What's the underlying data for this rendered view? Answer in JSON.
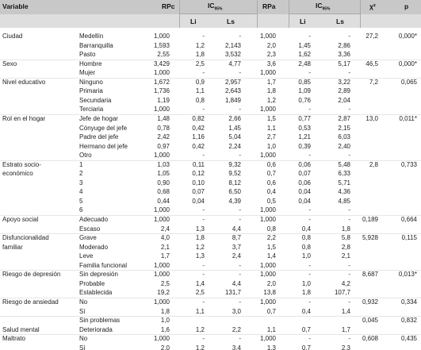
{
  "header": {
    "variable": "Variable",
    "rpc": "RPc",
    "ic_main": "IC",
    "ic_sub": "95%",
    "rpa": "RPa",
    "chi2": "χ²",
    "p": "p",
    "li": "Li",
    "ls": "Ls"
  },
  "rows": [
    {
      "var": "Ciudad",
      "cat": "Medellín",
      "rpc": "1,000",
      "li": "-",
      "ls": "-",
      "rpa": "1,000",
      "li2": "-",
      "ls2": "-",
      "chi": "27,2",
      "p": "0,000*"
    },
    {
      "var": "",
      "cat": "Barranquilla",
      "rpc": "1,593",
      "li": "1,2",
      "ls": "2,143",
      "rpa": "2,0",
      "li2": "1,45",
      "ls2": "2,86",
      "chi": "",
      "p": ""
    },
    {
      "var": "",
      "cat": "Pasto",
      "rpc": "2,55",
      "li": "1,8",
      "ls": "3,532",
      "rpa": "2,3",
      "li2": "1,62",
      "ls2": "3,36",
      "chi": "",
      "p": ""
    },
    {
      "var": "Sexo",
      "cat": "Hombre",
      "rpc": "3,429",
      "li": "2,5",
      "ls": "4,77",
      "rpa": "3,6",
      "li2": "2,48",
      "ls2": "5,17",
      "chi": "46,5",
      "p": "0,000*"
    },
    {
      "var": "",
      "cat": "Mujer",
      "rpc": "1,000",
      "li": "-",
      "ls": "-",
      "rpa": "1,000",
      "li2": "-",
      "ls2": "-",
      "chi": "",
      "p": ""
    },
    {
      "var": "Nivel educativo",
      "cat": "Ninguno",
      "rpc": "1,672",
      "li": "0,9",
      "ls": "2,957",
      "rpa": "1,7",
      "li2": "0,85",
      "ls2": "3,22",
      "chi": "7,2",
      "p": "0,065"
    },
    {
      "var": "",
      "cat": "Primaria",
      "rpc": "1,736",
      "li": "1,1",
      "ls": "2,643",
      "rpa": "1,8",
      "li2": "1,09",
      "ls2": "2,89",
      "chi": "",
      "p": ""
    },
    {
      "var": "",
      "cat": "Secundaria",
      "rpc": "1,19",
      "li": "0,8",
      "ls": "1,849",
      "rpa": "1,2",
      "li2": "0,76",
      "ls2": "2,04",
      "chi": "",
      "p": ""
    },
    {
      "var": "",
      "cat": "Terciaria",
      "rpc": "1,000",
      "li": "-",
      "ls": "-",
      "rpa": "1,000",
      "li2": "-",
      "ls2": "-",
      "chi": "",
      "p": ""
    },
    {
      "var": "Rol en el hogar",
      "cat": "Jefe de hogar",
      "rpc": "1,48",
      "li": "0,82",
      "ls": "2,66",
      "rpa": "1,5",
      "li2": "0,77",
      "ls2": "2,87",
      "chi": "13,0",
      "p": "0,011*"
    },
    {
      "var": "",
      "cat": "Cónyuge del jefe",
      "rpc": "0,78",
      "li": "0,42",
      "ls": "1,45",
      "rpa": "1,1",
      "li2": "0,53",
      "ls2": "2,15",
      "chi": "",
      "p": ""
    },
    {
      "var": "",
      "cat": "Padre del jefe",
      "rpc": "2,42",
      "li": "1,16",
      "ls": "5,04",
      "rpa": "2,7",
      "li2": "1,21",
      "ls2": "6,03",
      "chi": "",
      "p": ""
    },
    {
      "var": "",
      "cat": "Hermano del jefe",
      "rpc": "0,97",
      "li": "0,42",
      "ls": "2,24",
      "rpa": "1,0",
      "li2": "0,39",
      "ls2": "2,40",
      "chi": "",
      "p": ""
    },
    {
      "var": "",
      "cat": "Otro",
      "rpc": "1,000",
      "li": "-",
      "ls": "-",
      "rpa": "1,000",
      "li2": "-",
      "ls2": "-",
      "chi": "",
      "p": ""
    },
    {
      "var": "Estrato socio-",
      "cat": "1",
      "rpc": "1,03",
      "li": "0,11",
      "ls": "9,32",
      "rpa": "0,6",
      "li2": "0,06",
      "ls2": "5,48",
      "chi": "2,8",
      "p": "0,733"
    },
    {
      "var": "económico",
      "cat": "2",
      "rpc": "1,05",
      "li": "0,12",
      "ls": "9,52",
      "rpa": "0,7",
      "li2": "0,07",
      "ls2": "6,33",
      "chi": "",
      "p": ""
    },
    {
      "var": "",
      "cat": "3",
      "rpc": "0,90",
      "li": "0,10",
      "ls": "8,12",
      "rpa": "0,6",
      "li2": "0,06",
      "ls2": "5,71",
      "chi": "",
      "p": ""
    },
    {
      "var": "",
      "cat": "4",
      "rpc": "0,68",
      "li": "0,07",
      "ls": "6,50",
      "rpa": "0,4",
      "li2": "0,04",
      "ls2": "4,36",
      "chi": "",
      "p": ""
    },
    {
      "var": "",
      "cat": "5",
      "rpc": "0,44",
      "li": "0,04",
      "ls": "4,39",
      "rpa": "0,5",
      "li2": "0,04",
      "ls2": "4,85",
      "chi": "",
      "p": ""
    },
    {
      "var": "",
      "cat": "6",
      "rpc": "1,000",
      "li": "-",
      "ls": "-",
      "rpa": "1,000",
      "li2": "-",
      "ls2": "-",
      "chi": "",
      "p": ""
    },
    {
      "var": "Apoyo social",
      "cat": "Adecuado",
      "rpc": "1,000",
      "li": "-",
      "ls": "-",
      "rpa": "1,000",
      "li2": "-",
      "ls2": "-",
      "chi": "0,189",
      "p": "0,664"
    },
    {
      "var": "",
      "cat": "Escaso",
      "rpc": "2,4",
      "li": "1,3",
      "ls": "4,4",
      "rpa": "0,8",
      "li2": "0,4",
      "ls2": "1,8",
      "chi": "",
      "p": ""
    },
    {
      "var": "Disfuncionalidad",
      "cat": "Grave",
      "rpc": "4,0",
      "li": "1,8",
      "ls": "8,7",
      "rpa": "2,2",
      "li2": "0,8",
      "ls2": "5,8",
      "chi": "5,928",
      "p": "0,115"
    },
    {
      "var": "familiar",
      "cat": "Moderado",
      "rpc": "2,1",
      "li": "1,2",
      "ls": "3,7",
      "rpa": "1,5",
      "li2": "0,8",
      "ls2": "2,8",
      "chi": "",
      "p": ""
    },
    {
      "var": "",
      "cat": "Leve",
      "rpc": "1,7",
      "li": "1,3",
      "ls": "2,4",
      "rpa": "1,4",
      "li2": "1,0",
      "ls2": "2,1",
      "chi": "",
      "p": ""
    },
    {
      "var": "",
      "cat": "Familia funcional",
      "rpc": "1,000",
      "li": "-",
      "ls": "-",
      "rpa": "1,000",
      "li2": "-",
      "ls2": "-",
      "chi": "",
      "p": ""
    },
    {
      "var": "Riesgo de depresión",
      "cat": "Sin depresión",
      "rpc": "1,000",
      "li": "-",
      "ls": "-",
      "rpa": "1,000",
      "li2": "-",
      "ls2": "-",
      "chi": "8,687",
      "p": "0,013*"
    },
    {
      "var": "",
      "cat": "Probable",
      "rpc": "2,5",
      "li": "1,4",
      "ls": "4,4",
      "rpa": "2,0",
      "li2": "1,0",
      "ls2": "4,2",
      "chi": "",
      "p": ""
    },
    {
      "var": "",
      "cat": "Establecida",
      "rpc": "19,2",
      "li": "2,5",
      "ls": "131,7",
      "rpa": "13,8",
      "li2": "1,8",
      "ls2": "107,7",
      "chi": "",
      "p": ""
    },
    {
      "var": "Riesgo de ansiedad",
      "cat": "No",
      "rpc": "1,000",
      "li": "-",
      "ls": "-",
      "rpa": "1,000",
      "li2": "-",
      "ls2": "-",
      "chi": "0,932",
      "p": "0,334"
    },
    {
      "var": "",
      "cat": "Sí",
      "rpc": "1,8",
      "li": "1,1",
      "ls": "3,0",
      "rpa": "0,7",
      "li2": "0,4",
      "ls2": "1,4",
      "chi": "",
      "p": ""
    },
    {
      "var": "",
      "cat": "Sin problemas",
      "rpc": "1,0",
      "li": "",
      "ls": "",
      "rpa": "",
      "li2": "",
      "ls2": "",
      "chi": "0,045",
      "p": "0,832"
    },
    {
      "var": "Salud mental",
      "cat": "Deteriorada",
      "rpc": "1,6",
      "li": "1,2",
      "ls": "2,2",
      "rpa": "1,1",
      "li2": "0,7",
      "ls2": "1,7",
      "chi": "",
      "p": ""
    },
    {
      "var": "Maltrato",
      "cat": "No",
      "rpc": "1,000",
      "li": "-",
      "ls": "-",
      "rpa": "1,000",
      "li2": "-",
      "ls2": "-",
      "chi": "0,608",
      "p": "0,435"
    },
    {
      "var": "",
      "cat": "Sí",
      "rpc": "2,0",
      "li": "1,2",
      "ls": "3,4",
      "rpa": "1,3",
      "li2": "0,7",
      "ls2": "2,3",
      "chi": "",
      "p": ""
    }
  ]
}
